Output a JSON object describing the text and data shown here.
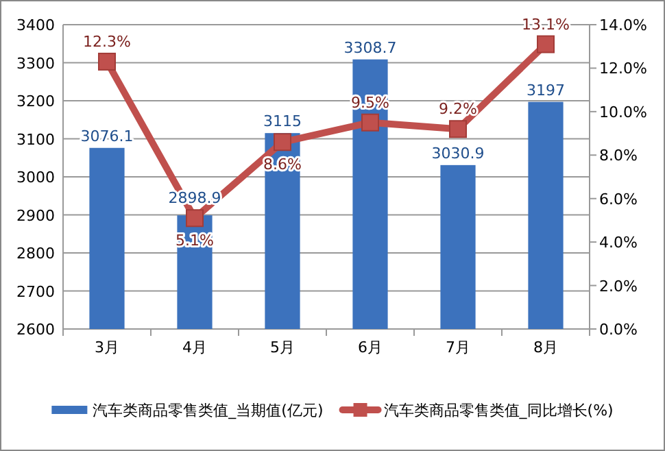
{
  "chart_data": {
    "type": "bar",
    "categories": [
      "3月",
      "4月",
      "5月",
      "6月",
      "7月",
      "8月"
    ],
    "ylim": [
      2600,
      3400
    ],
    "yticks": [
      2600,
      2700,
      2800,
      2900,
      3000,
      3100,
      3200,
      3300,
      3400
    ],
    "y2lim": [
      0,
      14
    ],
    "y2ticks": [
      {
        "value": 0,
        "label": "0.0%"
      },
      {
        "value": 2,
        "label": "2.0%"
      },
      {
        "value": 4,
        "label": "4.0%"
      },
      {
        "value": 6,
        "label": "6.0%"
      },
      {
        "value": 8,
        "label": "8.0%"
      },
      {
        "value": 10,
        "label": "10.0%"
      },
      {
        "value": 12,
        "label": "12.0%"
      },
      {
        "value": 14,
        "label": "14.0%"
      }
    ],
    "grid": "y",
    "legend": "bottom",
    "series": [
      {
        "name": "汽车类商品零售类值_当期值(亿元)",
        "color": "#3c72bd",
        "values": [
          3076.1,
          2898.9,
          3115,
          3308.7,
          3030.9,
          3197
        ],
        "value_labels": [
          "3076.1",
          "2898.9",
          "3115",
          "3308.7",
          "3030.9",
          "3197"
        ]
      },
      {
        "name": "汽车类商品零售类值_同比增长(%)",
        "type": "line",
        "axis": "y2",
        "color": "#c0504d",
        "marker": "square",
        "values": [
          12.3,
          5.1,
          8.6,
          9.5,
          9.2,
          13.1
        ],
        "value_labels": [
          "12.3%",
          "5.1%",
          "8.6%",
          "9.5%",
          "9.2%",
          "13.1%"
        ]
      }
    ]
  }
}
